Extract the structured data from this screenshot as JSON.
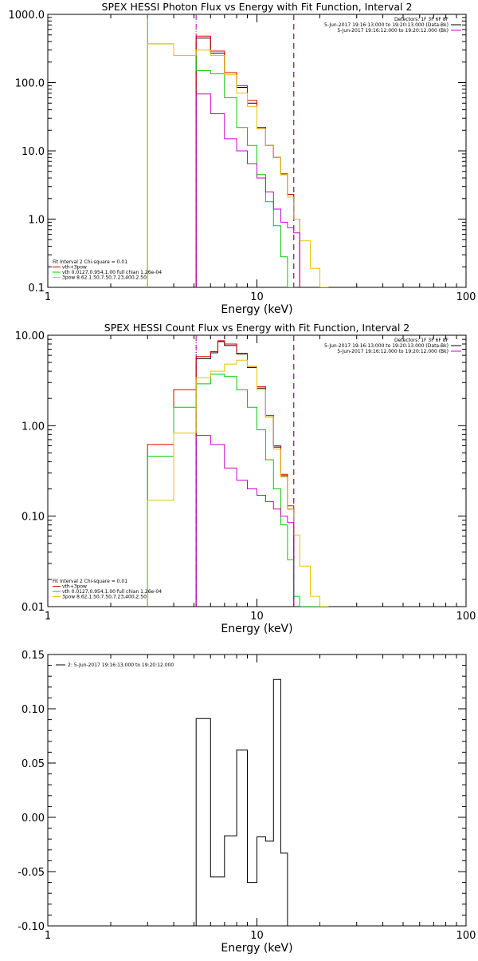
{
  "colors": {
    "black": "#000000",
    "red": "#dd0000",
    "green": "#00cc00",
    "gold": "#e6c200",
    "magenta": "#cc00cc",
    "background": "#ffffff"
  },
  "chart_data": [
    {
      "type": "line",
      "title": "SPEX HESSI Photon Flux vs Energy with Fit Function, Interval 2",
      "xlabel": "Energy (keV)",
      "ylabel": "",
      "xscale": "log",
      "yscale": "log",
      "xlim": [
        1,
        100
      ],
      "ylim": [
        0.1,
        1000
      ],
      "xticks": [
        "1",
        "10",
        "100"
      ],
      "yticks": [
        "0.1",
        "1.0",
        "10.0",
        "100.0",
        "1000.0"
      ],
      "vlines": [
        {
          "x": 3.0,
          "color": "green",
          "style": "solid"
        },
        {
          "x": 5.12,
          "color": "green",
          "style": "dotted"
        },
        {
          "x": 5.12,
          "color": "magenta",
          "style": "dashed"
        },
        {
          "x": 15.0,
          "color": "black",
          "style": "dashed"
        },
        {
          "x": 15.0,
          "color": "magenta",
          "style": "dashed"
        }
      ],
      "legend_top_right": [
        "Detectors: 1F 3F 6F 8F",
        "5-Jun-2017 19:16:13.000 to 19:20:13.000 (Data-Bk)",
        "5-Jun-2017 19:16:12.000 to 19:20:12.000 (Bk)"
      ],
      "legend_top_right_colors": [
        "none",
        "black",
        "magenta"
      ],
      "legend_bottom_left": [
        "Fit Interval 2   Chi-square = 0.01",
        "vth+3pow",
        "vth 0.0127,0.954,1.00  full chian 1.26e-04",
        "3pow 8.62,1.50,7.50,7.23,400,2.50"
      ],
      "legend_bottom_left_colors": [
        "none",
        "red",
        "green",
        "gold"
      ],
      "edges": [
        3.0,
        4.0,
        5.12,
        6.0,
        7.0,
        8.0,
        9.0,
        10.0,
        11.0,
        12.0,
        13.0,
        14.0,
        15.0,
        16.0,
        18.0,
        20.0,
        22.0
      ],
      "series": [
        {
          "color": "black",
          "values": [
            null,
            null,
            450,
            270,
            140,
            85,
            50,
            22,
            12,
            8,
            4.5,
            2.3,
            1.0,
            null,
            null,
            null
          ]
        },
        {
          "color": "red",
          "values": [
            null,
            null,
            480,
            290,
            140,
            90,
            55,
            22,
            12,
            8,
            4.6,
            2.3,
            1.0,
            null,
            null,
            null
          ]
        },
        {
          "color": "green",
          "values": [
            370,
            250,
            150,
            135,
            60,
            22,
            12,
            4.5,
            1.8,
            0.8,
            0.28,
            0.1,
            null,
            null,
            null,
            null
          ]
        },
        {
          "color": "gold",
          "values": [
            370,
            250,
            300,
            250,
            130,
            70,
            45,
            21,
            12,
            8,
            4.5,
            2.1,
            1.0,
            0.48,
            0.19,
            0.1
          ]
        },
        {
          "color": "magenta",
          "values": [
            null,
            null,
            68,
            35,
            15,
            10,
            6.5,
            4.0,
            2.5,
            1.4,
            0.9,
            0.75,
            0.63,
            null,
            null,
            null
          ]
        }
      ]
    },
    {
      "type": "line",
      "title": "SPEX HESSI Count Flux vs Energy with Fit Function, Interval 2",
      "xlabel": "Energy (keV)",
      "ylabel": "",
      "xscale": "log",
      "yscale": "log",
      "xlim": [
        1,
        100
      ],
      "ylim": [
        0.01,
        10
      ],
      "xticks": [
        "1",
        "10",
        "100"
      ],
      "yticks": [
        "0.01",
        "0.10",
        "1.00",
        "10.00"
      ],
      "vlines": [
        {
          "x": 5.12,
          "color": "black",
          "style": "dotted"
        },
        {
          "x": 5.12,
          "color": "magenta",
          "style": "dashed"
        },
        {
          "x": 15.0,
          "color": "black",
          "style": "dashed"
        },
        {
          "x": 15.0,
          "color": "magenta",
          "style": "dashed"
        }
      ],
      "legend_top_right": [
        "Detectors: 1F 3F 6F 8F",
        "5-Jun-2017 19:16:13.000 to 19:20:13.000 (Data-Bk)",
        "5-Jun-2017 19:16:12.000 to 19:20:12.000 (Bk)"
      ],
      "legend_top_right_colors": [
        "none",
        "black",
        "magenta"
      ],
      "legend_bottom_left": [
        "Fit Interval 2   Chi-square = 0.01",
        "vth+3pow",
        "vth 0.0127,0.954,1.00  full chian 1.26e-04",
        "3pow 8.62,1.50,7.50,7.23,400,2.50"
      ],
      "legend_bottom_left_colors": [
        "none",
        "red",
        "green",
        "gold"
      ],
      "edges": [
        3.0,
        4.0,
        5.12,
        6.0,
        6.5,
        7.0,
        8.0,
        9.0,
        10.0,
        11.0,
        12.0,
        13.0,
        14.0,
        15.0,
        16.0,
        18.0,
        20.0,
        22.0
      ],
      "series": [
        {
          "color": "black",
          "values": [
            null,
            null,
            5.5,
            6.4,
            8.5,
            7.7,
            6.2,
            4.4,
            2.6,
            1.25,
            0.58,
            0.28,
            0.12,
            null,
            null,
            null,
            null
          ]
        },
        {
          "color": "red",
          "values": [
            0.62,
            2.5,
            5.8,
            6.6,
            8.7,
            8.0,
            6.3,
            4.5,
            2.7,
            1.3,
            0.6,
            0.29,
            0.13,
            null,
            null,
            null,
            null
          ]
        },
        {
          "color": "green",
          "values": [
            0.46,
            1.6,
            2.9,
            3.7,
            3.7,
            3.5,
            2.5,
            1.6,
            0.9,
            0.42,
            0.2,
            0.08,
            0.033,
            0.013,
            0.01,
            0.01,
            0.01
          ]
        },
        {
          "color": "gold",
          "values": [
            0.15,
            0.83,
            3.4,
            4.0,
            4.0,
            4.8,
            5.3,
            4.5,
            2.5,
            1.25,
            0.55,
            0.27,
            0.12,
            0.062,
            0.028,
            0.013,
            0.01
          ]
        },
        {
          "color": "magenta",
          "values": [
            null,
            null,
            0.78,
            0.62,
            0.62,
            0.34,
            0.25,
            0.2,
            0.17,
            0.145,
            0.12,
            0.1,
            0.085,
            null,
            null,
            null,
            null
          ]
        }
      ]
    },
    {
      "type": "line",
      "title": "",
      "xlabel": "Energy (keV)",
      "ylabel": "",
      "xscale": "log",
      "yscale": "linear",
      "xlim": [
        1,
        100
      ],
      "ylim": [
        -0.1,
        0.15
      ],
      "xticks": [
        "1",
        "10",
        "100"
      ],
      "yticks": [
        "-0.10",
        "-0.05",
        "0.00",
        "0.05",
        "0.10",
        "0.15"
      ],
      "legend_top_left": [
        "2:  5-Jun-2017 19:16:13.000 to 19:20:12.000"
      ],
      "edges": [
        5.12,
        6.0,
        7.0,
        8.0,
        9.0,
        10.0,
        11.0,
        12.0,
        13.0,
        14.0,
        15.0
      ],
      "series": [
        {
          "color": "black",
          "values": [
            0.091,
            -0.055,
            -0.017,
            0.062,
            -0.06,
            -0.018,
            -0.022,
            0.127,
            -0.033,
            null
          ]
        }
      ]
    }
  ]
}
